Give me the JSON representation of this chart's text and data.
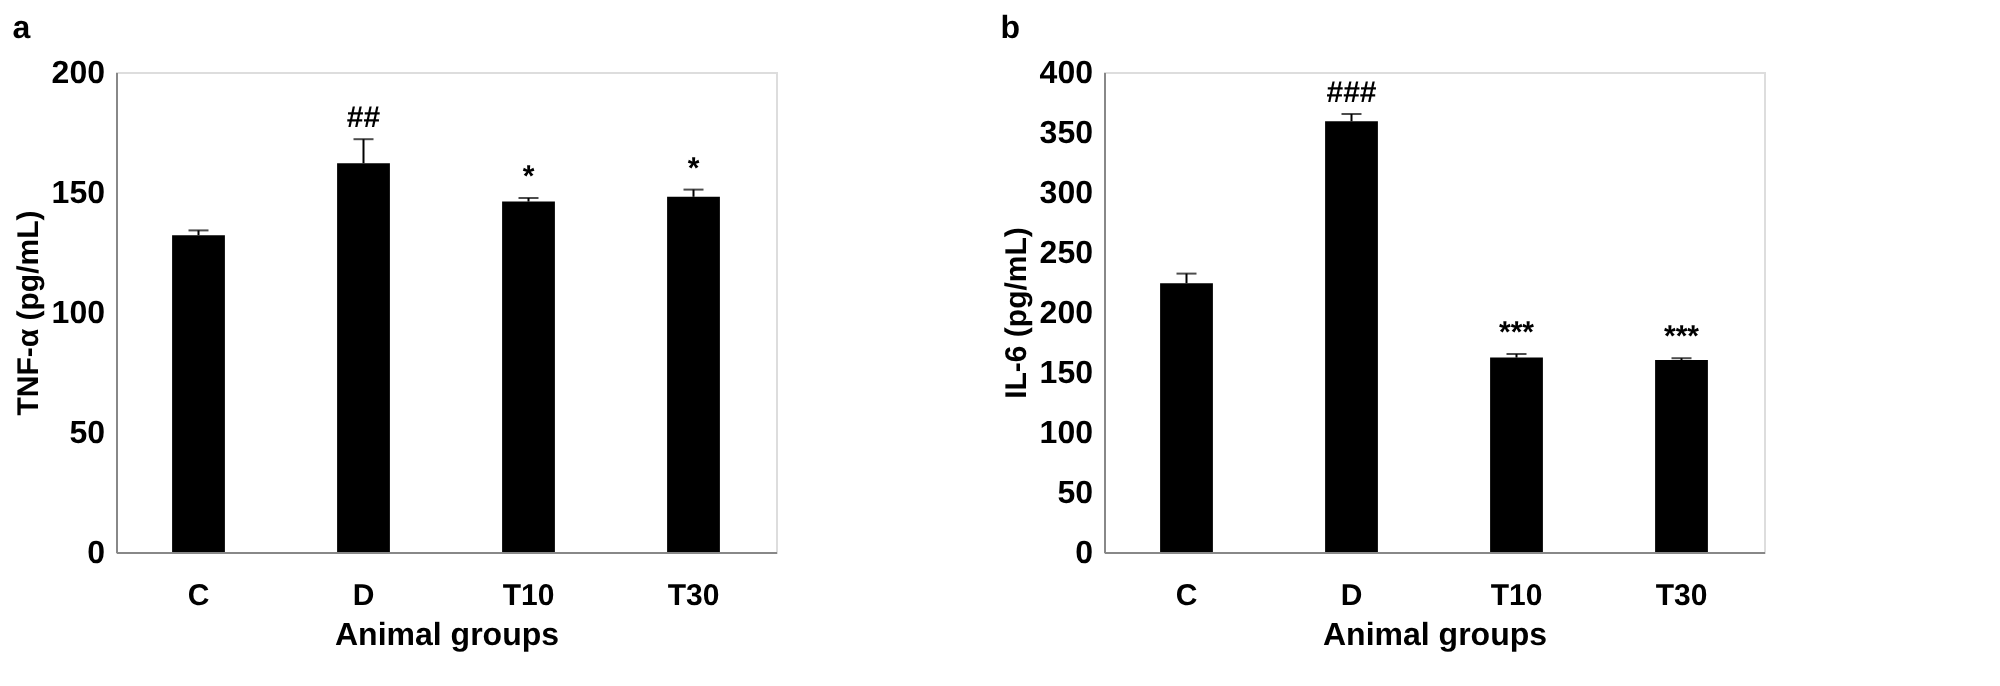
{
  "chart_data": [
    {
      "type": "bar",
      "title": "a",
      "xlabel": "Animal groups",
      "ylabel": "TNF-α (pg/mL)",
      "categories": [
        "C",
        "D",
        "T10",
        "T30"
      ],
      "values": [
        132,
        162,
        146,
        148
      ],
      "errors": [
        2,
        10,
        1.5,
        3
      ],
      "color": "#000000",
      "ylim": [
        0,
        200
      ],
      "yticks": [
        0,
        50,
        100,
        150,
        200
      ],
      "grid": false,
      "annotations": [
        {
          "text": "##",
          "x": "D",
          "y": 172
        },
        {
          "text": "*",
          "x": "T10",
          "y": 147.5
        },
        {
          "text": "*",
          "x": "T30",
          "y": 151
        }
      ]
    },
    {
      "type": "bar",
      "title": "b",
      "xlabel": "Animal groups",
      "ylabel": "IL-6 (pg/mL)",
      "categories": [
        "C",
        "D",
        "T10",
        "T30"
      ],
      "values": [
        224,
        359,
        162,
        160
      ],
      "errors": [
        8,
        6,
        3,
        1.5
      ],
      "color": "#000000",
      "ylim": [
        0,
        400
      ],
      "yticks": [
        0,
        50,
        100,
        150,
        200,
        250,
        300,
        350,
        400
      ],
      "grid": false,
      "annotations": [
        {
          "text": "###",
          "x": "D",
          "y": 365
        },
        {
          "text": "***",
          "x": "T10",
          "y": 165
        },
        {
          "text": "***",
          "x": "T30",
          "y": 161.5
        }
      ]
    }
  ]
}
